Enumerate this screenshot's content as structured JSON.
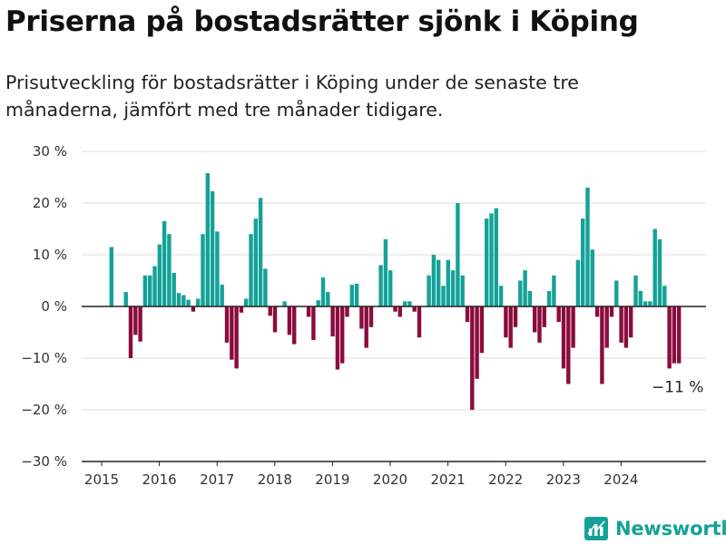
{
  "title": "Priserna på bostadsrätter sjönk i Köping",
  "subtitle": "Prisutveckling för bostadsrätter i Köping under de senaste tre månaderna, jämfört med tre månader tidigare.",
  "brand": {
    "name": "Newsworthy",
    "icon": "newsworthy-chart-logo-icon"
  },
  "colors": {
    "positive": "#14a298",
    "negative": "#8b0c3c",
    "grid": "#dddddd",
    "axis": "#222222",
    "brand": "#14a298"
  },
  "chart_data": {
    "type": "bar",
    "title": "Priserna på bostadsrätter sjönk i Köping",
    "subtitle": "Prisutveckling för bostadsrätter i Köping under de senaste tre månaderna, jämfört med tre månader tidigare.",
    "xlabel": "",
    "ylabel": "",
    "ylim": [
      -30,
      30
    ],
    "yticks": [
      30,
      20,
      10,
      0,
      -10,
      -20,
      -30
    ],
    "ytick_labels": [
      "30 %",
      "20 %",
      "10 %",
      "0 %",
      "−10 %",
      "−20 %",
      "−30 %"
    ],
    "xticks": [
      "2015",
      "2016",
      "2017",
      "2018",
      "2019",
      "2020",
      "2021",
      "2022",
      "2023",
      "2024"
    ],
    "grid": true,
    "start": "2015-01",
    "frequency": "monthly",
    "values": [
      null,
      null,
      11.5,
      null,
      null,
      2.8,
      -10,
      -5.5,
      -6.8,
      6,
      6,
      7.8,
      12,
      16.5,
      14,
      6.5,
      2.6,
      2.2,
      1.3,
      -1,
      1.5,
      14,
      25.8,
      22.3,
      14.5,
      4.2,
      -7,
      -10.3,
      -12,
      -1.2,
      1.5,
      14,
      17,
      21,
      7.3,
      -1.8,
      -5,
      null,
      1,
      -5.5,
      -7.3,
      null,
      null,
      -2,
      -6.5,
      1.2,
      5.6,
      2.8,
      -5.8,
      -12.2,
      -11,
      -2,
      4.2,
      4.4,
      -4.3,
      -8,
      -4,
      null,
      8,
      13,
      7,
      -1,
      -2,
      1,
      1,
      -1,
      -6,
      null,
      6,
      10,
      9,
      4,
      9,
      7,
      20,
      6,
      -3,
      -20,
      -14,
      -9,
      17,
      18,
      19,
      4,
      -6,
      -8,
      -4,
      5,
      7,
      3,
      -5,
      -7,
      -4,
      3,
      6,
      -3,
      -12,
      -15,
      -8,
      9,
      17,
      23,
      11,
      -2,
      -15,
      -8,
      -2,
      5,
      -7,
      -8,
      -6,
      6,
      3,
      1,
      1,
      15,
      13,
      4,
      -12,
      -11,
      -11
    ],
    "annotation": {
      "text": "−11 %"
    }
  }
}
